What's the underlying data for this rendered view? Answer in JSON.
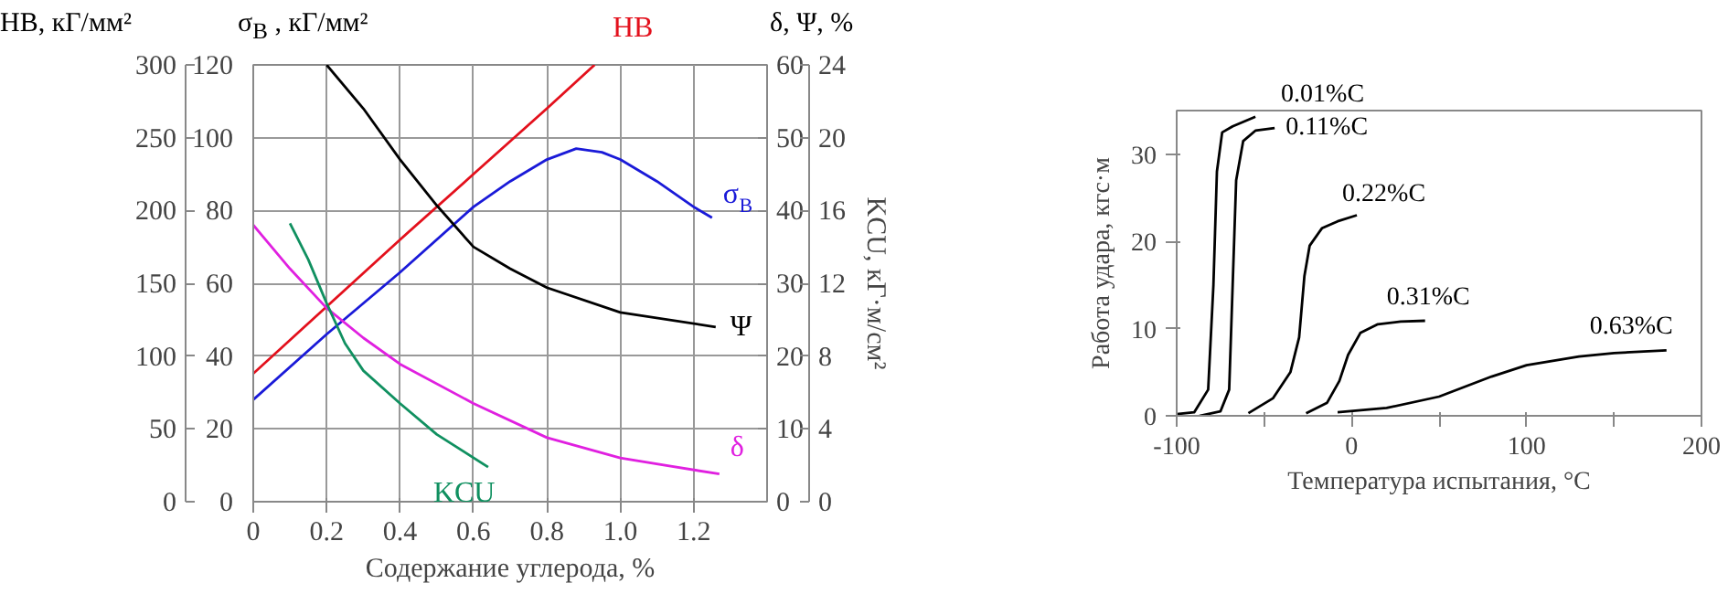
{
  "chart_data": [
    {
      "type": "line",
      "xlabel": "Содержание углерода, %",
      "ylabel": "σ$_{B}$ , кГ/мм²",
      "y2label": "δ, Ψ, %",
      "y3label": "HB, кГ/мм²",
      "xlim": [
        0,
        1.4
      ],
      "xticks": [
        0,
        0.2,
        0.4,
        0.6,
        0.8,
        {
          "value": 1,
          "label": "1.0"
        },
        1.2
      ],
      "ylim": [
        0,
        120
      ],
      "yticks": [
        0,
        20,
        40,
        60,
        80,
        100,
        120
      ],
      "y2lim": [
        0,
        60
      ],
      "y2ticks": [
        0,
        10,
        20,
        30,
        40,
        50,
        60
      ],
      "y3lim": [
        0,
        300
      ],
      "y3ticks": [
        0,
        50,
        100,
        150,
        200,
        250,
        300
      ],
      "grid": true,
      "series": [
        {
          "name": "HB",
          "color": "#e3101c",
          "axis": "y3",
          "x": [
            0,
            0.2,
            0.4,
            0.6,
            0.8,
            0.93
          ],
          "values": [
            88,
            134,
            180,
            225,
            270,
            300
          ]
        },
        {
          "name": "σ$_{B}$",
          "color": "#1a1ad8",
          "x": [
            0,
            0.2,
            0.4,
            0.6,
            0.7,
            0.8,
            0.88,
            0.95,
            1.0,
            1.1,
            1.2,
            1.25
          ],
          "values": [
            28,
            46,
            63,
            81,
            88,
            94,
            97,
            96,
            94,
            88,
            81,
            78
          ]
        },
        {
          "name": "Ψ",
          "color": "#000000",
          "axis": "y2",
          "x": [
            0.2,
            0.3,
            0.4,
            0.5,
            0.6,
            0.7,
            0.8,
            1.0,
            1.26
          ],
          "values": [
            60,
            54,
            47,
            40.7,
            35,
            32,
            29.4,
            26,
            24
          ]
        },
        {
          "name": "δ",
          "color": "#e020e0",
          "axis": "y2",
          "x": [
            0,
            0.1,
            0.2,
            0.3,
            0.4,
            0.6,
            0.8,
            1.0,
            1.27
          ],
          "values": [
            38,
            32,
            26.6,
            22.5,
            18.9,
            13.5,
            8.8,
            6,
            3.8
          ]
        }
      ]
    },
    {
      "type": "line",
      "ylabel": "KCU, кГ·м/см²",
      "xlim": [
        0,
        1.4
      ],
      "ylim": [
        0,
        24
      ],
      "yticks": [
        0,
        4,
        8,
        12,
        16,
        20,
        24
      ],
      "tick_labels": "y",
      "series": [
        {
          "name": "KCU",
          "color": "#109060",
          "x": [
            0.1,
            0.15,
            0.2,
            0.25,
            0.3,
            0.4,
            0.5,
            0.64
          ],
          "values": [
            15.3,
            13.3,
            10.9,
            8.7,
            7.2,
            5.4,
            3.7,
            1.9
          ]
        }
      ]
    },
    {
      "type": "line",
      "xlabel": "Температура испытания, °C",
      "ylabel": "Работа удара, кгс·м",
      "xlim": [
        -100,
        200
      ],
      "xticks": [
        -100,
        {
          "value": -50,
          "label": null
        },
        0,
        {
          "value": 50,
          "label": null
        },
        100,
        {
          "value": 150,
          "label": null
        },
        200
      ],
      "ylim": [
        0,
        35
      ],
      "yticks": [
        0,
        10,
        20,
        30
      ],
      "series": [
        {
          "name": "0.01%C",
          "color": "#000000",
          "x": [
            -100,
            -90,
            -82,
            -79,
            -77,
            -74,
            -68,
            -55
          ],
          "values": [
            0.2,
            0.4,
            3,
            15,
            28,
            32.5,
            33.2,
            34.3
          ]
        },
        {
          "name": "0.11%C",
          "color": "#000000",
          "x": [
            -87,
            -75,
            -70,
            -68,
            -66,
            -62,
            -55,
            -44
          ],
          "values": [
            0,
            0.5,
            3,
            15,
            27,
            31.5,
            32.7,
            33
          ]
        },
        {
          "name": "0.22%C",
          "color": "#000000",
          "x": [
            -59,
            -45,
            -35,
            -30,
            -27,
            -24,
            -17,
            -8,
            3
          ],
          "values": [
            0.3,
            2,
            5,
            9,
            16,
            19.5,
            21.5,
            22.3,
            23
          ]
        },
        {
          "name": "0.31%C",
          "color": "#000000",
          "x": [
            -26,
            -14,
            -7,
            -2,
            5,
            15,
            28,
            42
          ],
          "values": [
            0.3,
            1.5,
            4,
            7,
            9.5,
            10.5,
            10.8,
            10.9
          ]
        },
        {
          "name": "0.63%C",
          "color": "#000000",
          "x": [
            -8,
            20,
            50,
            80,
            100,
            130,
            150,
            180
          ],
          "values": [
            0.4,
            0.9,
            2.2,
            4.5,
            5.8,
            6.8,
            7.2,
            7.5
          ]
        }
      ]
    }
  ]
}
